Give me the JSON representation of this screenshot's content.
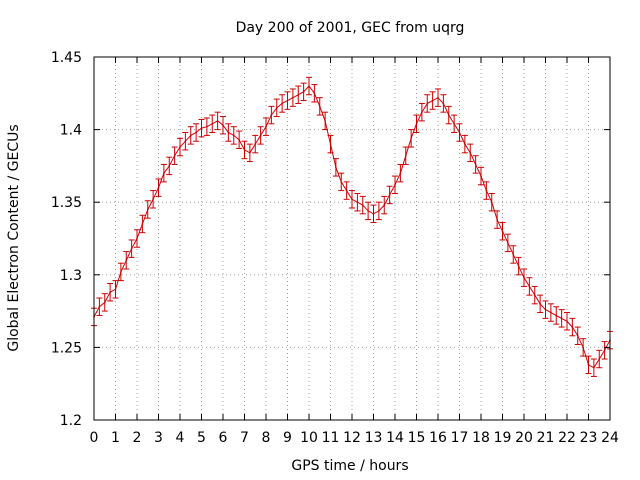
{
  "chart_data": {
    "type": "line",
    "title": "Day 200 of 2001, GEC from uqrg",
    "xlabel": "GPS time / hours",
    "ylabel": "Global Electron Content / GECUs",
    "xlim": [
      0,
      24
    ],
    "ylim": [
      1.2,
      1.45
    ],
    "x_ticks": [
      "0",
      "1",
      "2",
      "3",
      "4",
      "5",
      "6",
      "7",
      "8",
      "9",
      "10",
      "11",
      "12",
      "13",
      "14",
      "15",
      "16",
      "17",
      "18",
      "19",
      "20",
      "21",
      "22",
      "23",
      "24"
    ],
    "y_ticks": [
      "1.2",
      "1.25",
      "1.3",
      "1.35",
      "1.4",
      "1.45"
    ],
    "grid": true,
    "error_bar": 0.006,
    "series_color": "#cc0000",
    "x": [
      0,
      0.25,
      0.5,
      0.75,
      1,
      1.25,
      1.5,
      1.75,
      2,
      2.25,
      2.5,
      2.75,
      3,
      3.25,
      3.5,
      3.75,
      4,
      4.25,
      4.5,
      4.75,
      5,
      5.25,
      5.5,
      5.75,
      6,
      6.25,
      6.5,
      6.75,
      7,
      7.25,
      7.5,
      7.75,
      8,
      8.25,
      8.5,
      8.75,
      9,
      9.25,
      9.5,
      9.75,
      10,
      10.25,
      10.5,
      10.75,
      11,
      11.25,
      11.5,
      11.75,
      12,
      12.25,
      12.5,
      12.75,
      13,
      13.25,
      13.5,
      13.75,
      14,
      14.25,
      14.5,
      14.75,
      15,
      15.25,
      15.5,
      15.75,
      16,
      16.25,
      16.5,
      16.75,
      17,
      17.25,
      17.5,
      17.75,
      18,
      18.25,
      18.5,
      18.75,
      19,
      19.25,
      19.5,
      19.75,
      20,
      20.25,
      20.5,
      20.75,
      21,
      21.25,
      21.5,
      21.75,
      22,
      22.25,
      22.5,
      22.75,
      23,
      23.25,
      23.5,
      23.75,
      24
    ],
    "y": [
      1.271,
      1.278,
      1.281,
      1.288,
      1.29,
      1.302,
      1.31,
      1.318,
      1.325,
      1.335,
      1.345,
      1.352,
      1.36,
      1.37,
      1.375,
      1.382,
      1.388,
      1.392,
      1.396,
      1.398,
      1.401,
      1.402,
      1.404,
      1.406,
      1.403,
      1.398,
      1.396,
      1.393,
      1.386,
      1.384,
      1.39,
      1.396,
      1.402,
      1.41,
      1.415,
      1.418,
      1.42,
      1.422,
      1.424,
      1.426,
      1.43,
      1.425,
      1.416,
      1.406,
      1.39,
      1.374,
      1.364,
      1.358,
      1.352,
      1.35,
      1.348,
      1.344,
      1.342,
      1.344,
      1.348,
      1.355,
      1.362,
      1.37,
      1.382,
      1.394,
      1.404,
      1.412,
      1.418,
      1.42,
      1.422,
      1.418,
      1.41,
      1.404,
      1.398,
      1.39,
      1.384,
      1.376,
      1.368,
      1.358,
      1.35,
      1.338,
      1.33,
      1.322,
      1.314,
      1.306,
      1.298,
      1.292,
      1.286,
      1.28,
      1.276,
      1.274,
      1.272,
      1.27,
      1.268,
      1.264,
      1.258,
      1.25,
      1.238,
      1.236,
      1.242,
      1.248,
      1.255
    ]
  }
}
